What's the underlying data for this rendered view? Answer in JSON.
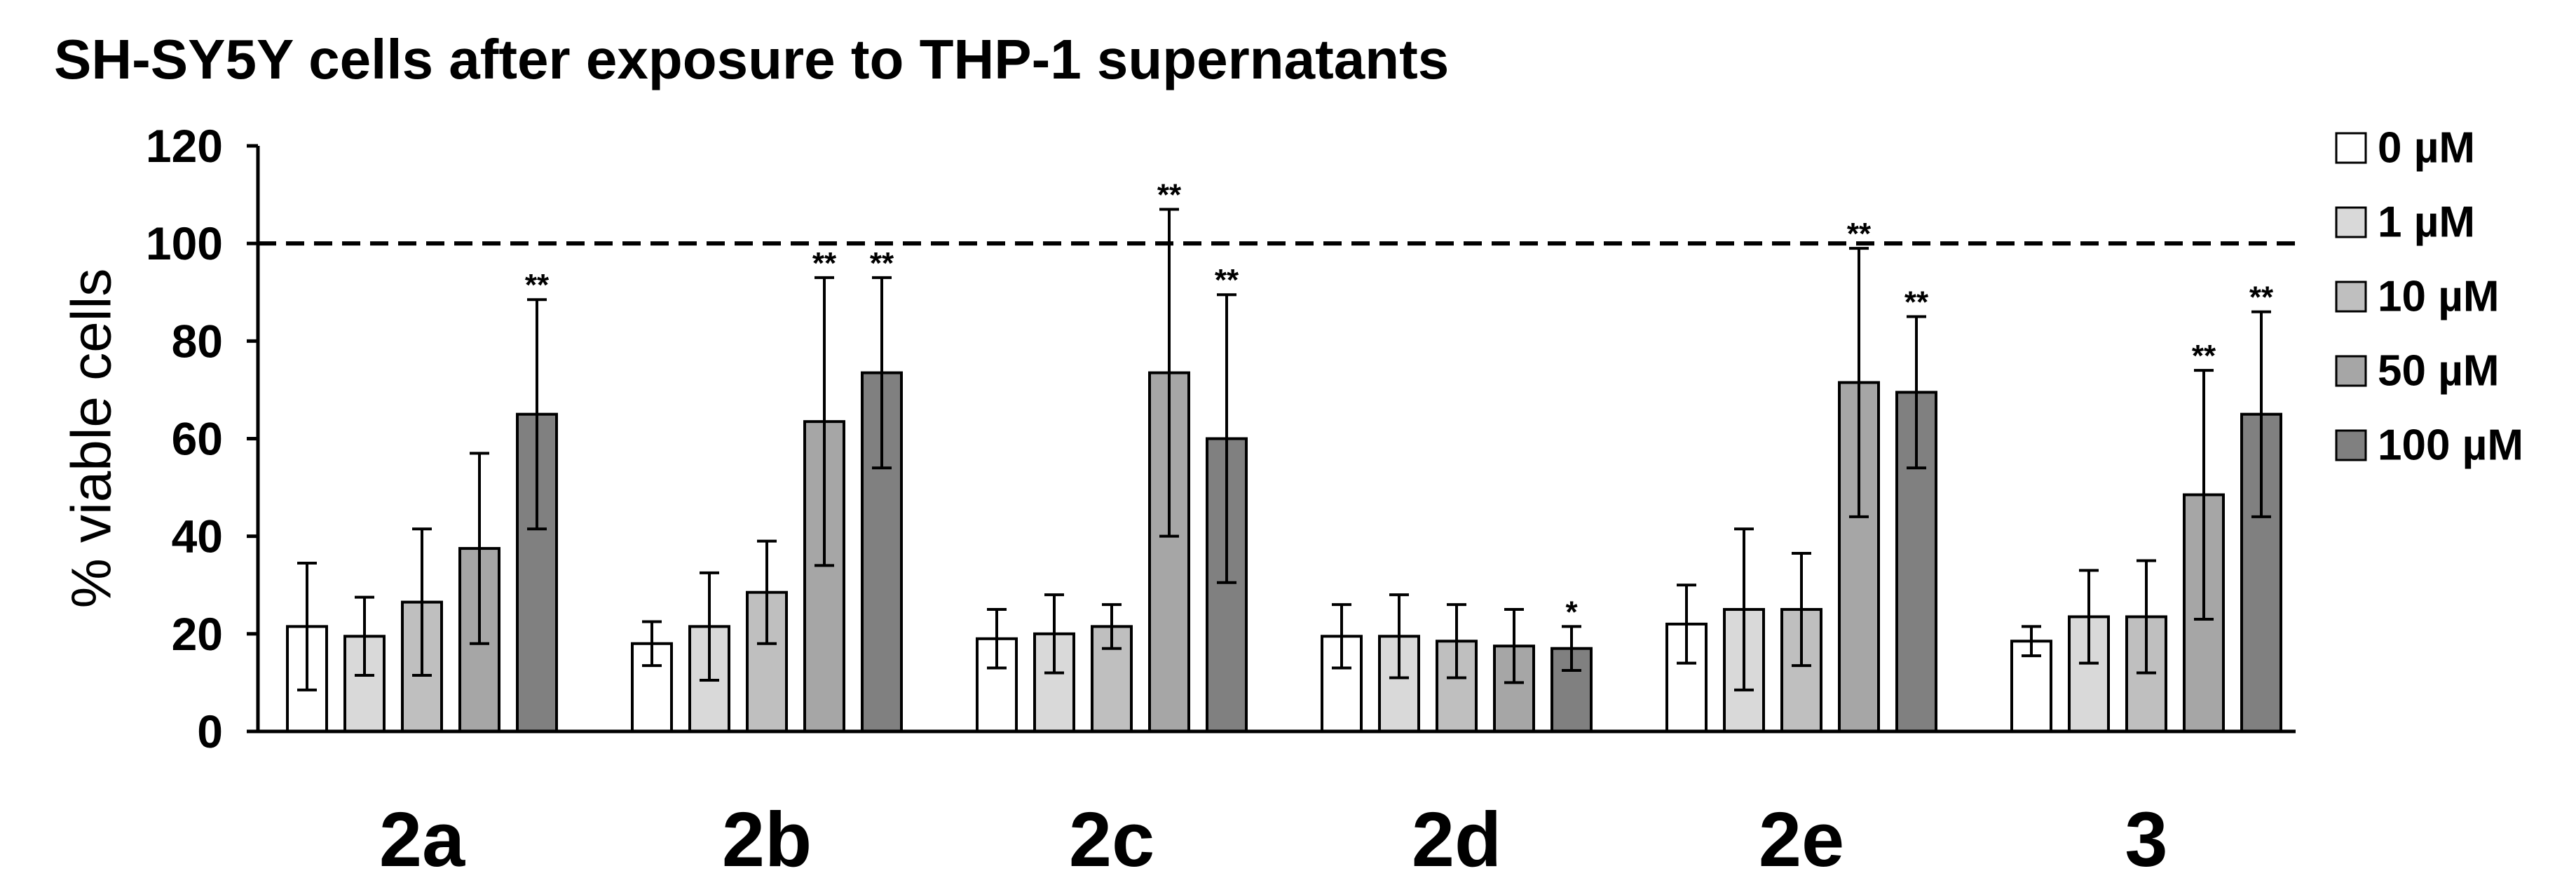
{
  "chart_data": {
    "type": "bar",
    "title": "SH-SY5Y cells after exposure to THP-1 supernatants",
    "ylabel": "% viable cells",
    "ylim": [
      0,
      120
    ],
    "yticks": [
      0,
      20,
      40,
      60,
      80,
      100,
      120
    ],
    "categories": [
      "2a",
      "2b",
      "2c",
      "2d",
      "2e",
      "3"
    ],
    "reference_line": {
      "y": 100,
      "style": "dashed"
    },
    "legend_position": "right",
    "grid": false,
    "series": [
      {
        "name": "0 µM",
        "color": "#ffffff",
        "values": [
          21.5,
          18,
          19,
          19.5,
          22,
          18.5
        ],
        "errors": [
          13,
          4.5,
          6,
          6.5,
          8,
          3
        ],
        "significance": [
          null,
          null,
          null,
          null,
          null,
          null
        ]
      },
      {
        "name": "1 µM",
        "color": "#d9d9d9",
        "values": [
          19.5,
          21.5,
          20,
          19.5,
          25,
          23.5
        ],
        "errors": [
          8,
          11,
          8,
          8.5,
          16.5,
          9.5
        ],
        "significance": [
          null,
          null,
          null,
          null,
          null,
          null
        ]
      },
      {
        "name": "10 µM",
        "color": "#bfbfbf",
        "values": [
          26.5,
          28.5,
          21.5,
          18.5,
          25,
          23.5
        ],
        "errors": [
          15,
          10.5,
          4.5,
          7.5,
          11.5,
          11.5
        ],
        "significance": [
          null,
          null,
          null,
          null,
          null,
          null
        ]
      },
      {
        "name": "50 µM",
        "color": "#a6a6a6",
        "values": [
          37.5,
          63.5,
          73.5,
          17.5,
          71.5,
          48.5
        ],
        "errors": [
          19.5,
          29.5,
          33.5,
          7.5,
          27.5,
          25.5
        ],
        "significance": [
          null,
          "**",
          "**",
          null,
          "**",
          "**"
        ]
      },
      {
        "name": "100 µM",
        "color": "#808080",
        "values": [
          65,
          73.5,
          60,
          17,
          69.5,
          65
        ],
        "errors": [
          23.5,
          19.5,
          29.5,
          4.5,
          15.5,
          21
        ],
        "significance": [
          "**",
          "**",
          "**",
          "*",
          "**",
          "**"
        ]
      }
    ]
  }
}
